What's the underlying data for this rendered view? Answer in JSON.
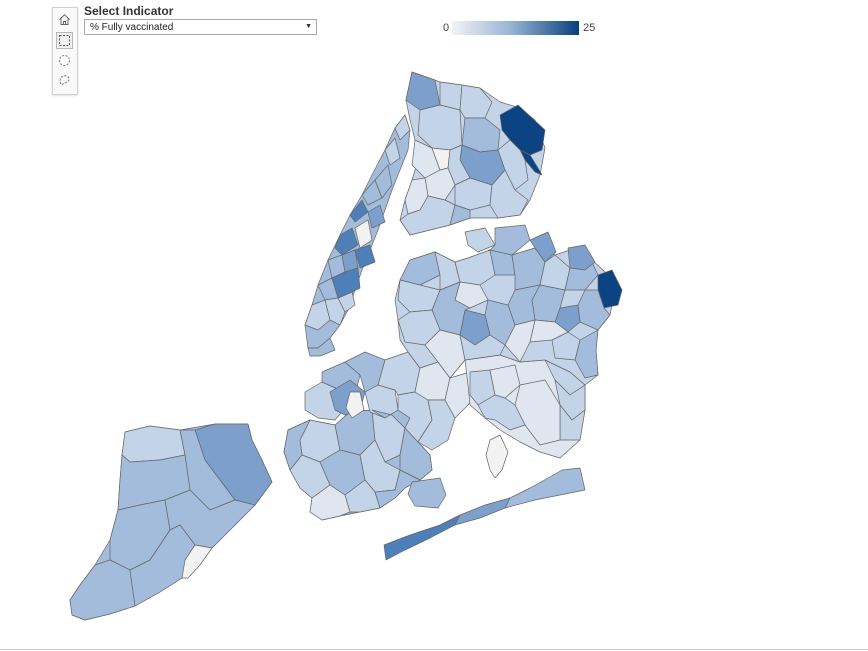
{
  "indicator": {
    "title": "Select Indicator",
    "selected_value": "% Fully vaccinated"
  },
  "legend": {
    "min_label": "0",
    "max_label": "25",
    "min_color": "#f1f3f6",
    "max_color": "#083f7e"
  },
  "toolbar": {
    "tools": [
      "home-icon",
      "box-select-icon",
      "circle-select-icon",
      "lasso-select-icon"
    ],
    "selected": "box-select-icon"
  },
  "map": {
    "region": "New York City zip code areas",
    "colors": {
      "darkest": "#0b4383",
      "dark": "#4f7fb8",
      "medium": "#7d9fcb",
      "light": "#a3bcdc",
      "lighter": "#c3d3e8",
      "lightest": "#dfe6f0",
      "no_data": "#f2f2f2"
    }
  }
}
